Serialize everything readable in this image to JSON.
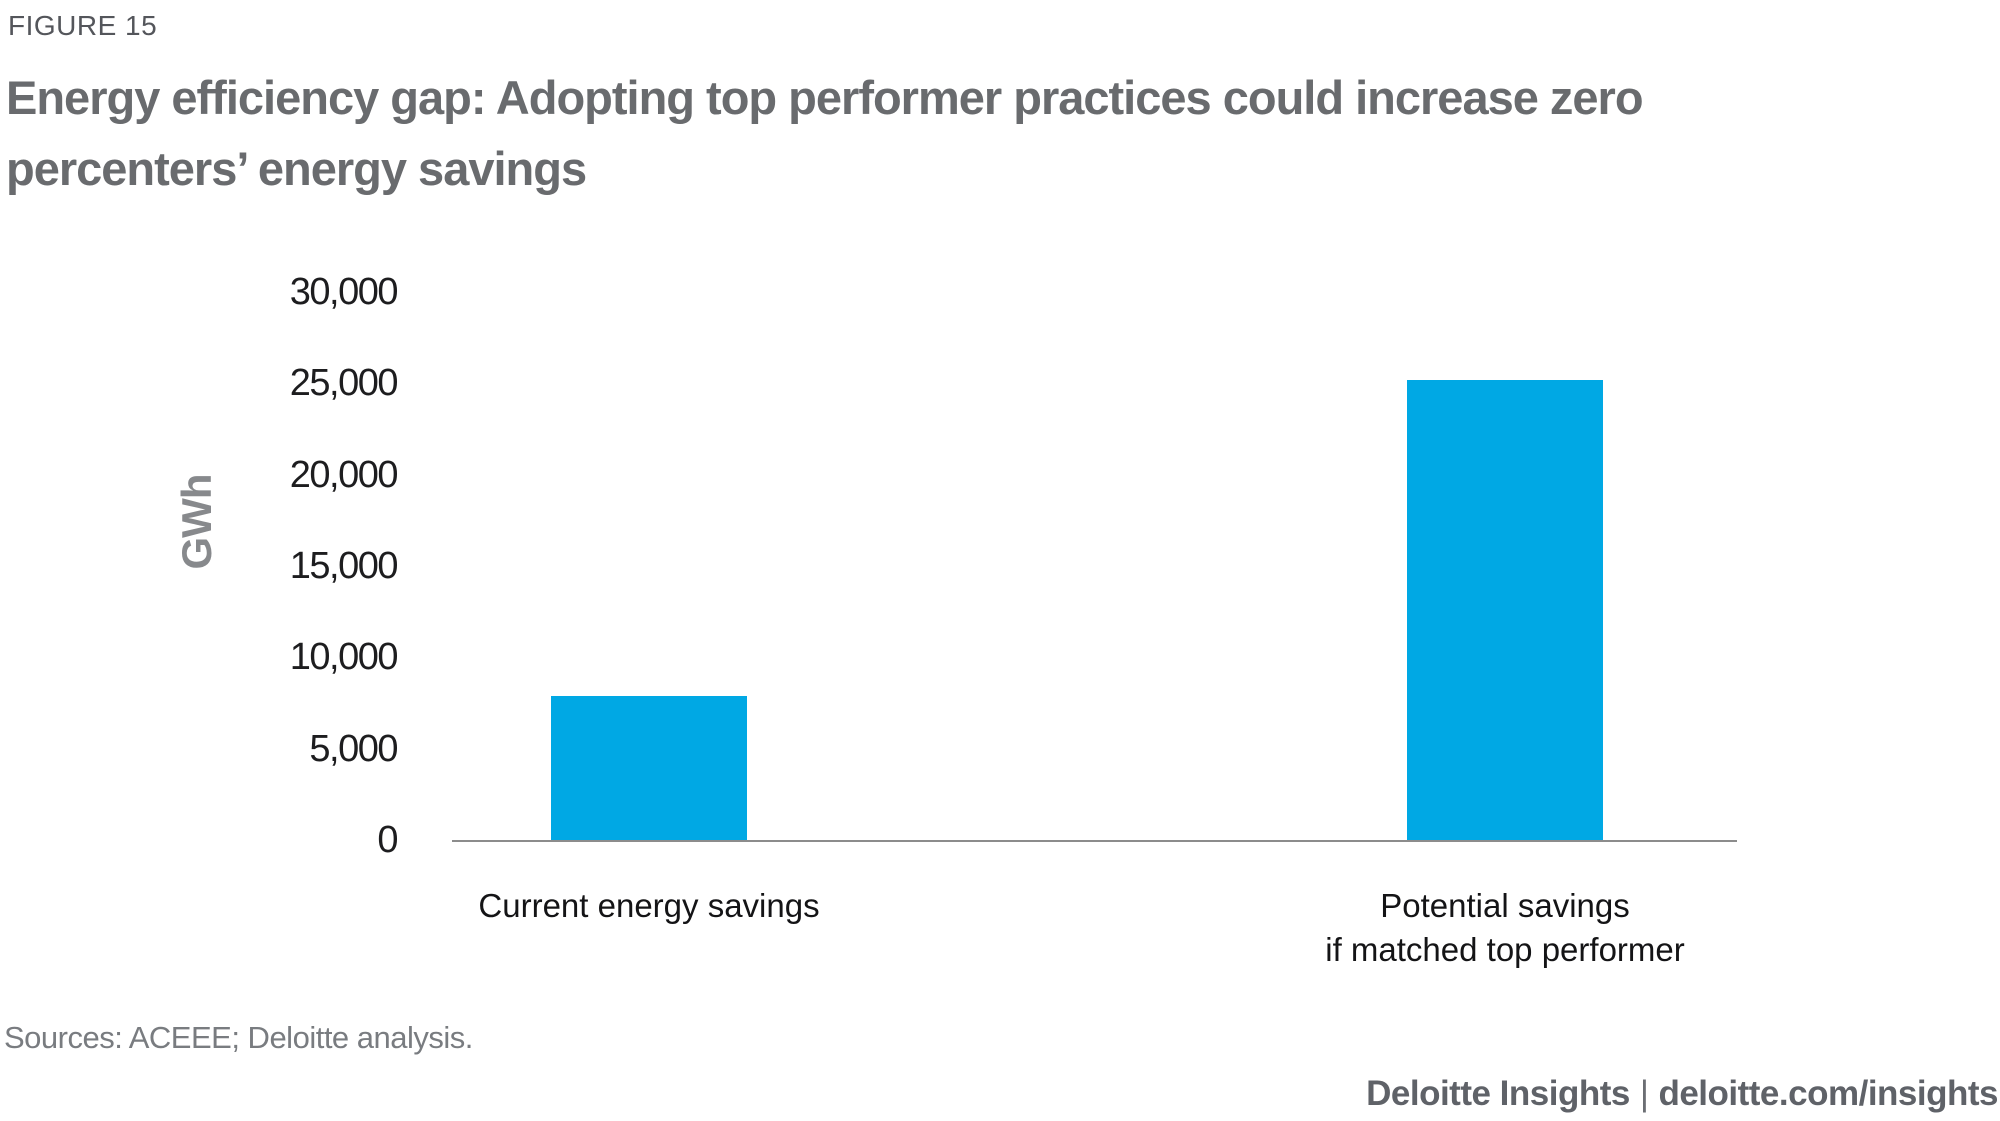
{
  "figure_label": "FIGURE 15",
  "title": "Energy efficiency gap: Adopting top performer practices could increase zero percenters’ energy savings",
  "chart_data": {
    "type": "bar",
    "title": "Energy efficiency gap: Adopting top performer practices could increase zero percenters’ energy savings",
    "categories": [
      "Current energy savings",
      "Potential savings\nif matched top performer"
    ],
    "values": [
      7900,
      25200
    ],
    "unit": "GWh",
    "xlabel": "",
    "ylabel": "GWh",
    "ylim": [
      0,
      30000
    ],
    "yticks": [
      0,
      5000,
      10000,
      15000,
      20000,
      25000,
      30000
    ],
    "ytick_labels": [
      "0",
      "5,000",
      "10,000",
      "15,000",
      "20,000",
      "25,000",
      "30,000"
    ],
    "bar_color": "#00A8E4",
    "axis_line_color": "#8C8C8C",
    "grid": false,
    "legend": "none"
  },
  "sources": "Sources: ACEEE; Deloitte analysis.",
  "footer": {
    "brand": "Deloitte Insights",
    "separator": "|",
    "link": "deloitte.com/insights"
  },
  "colors": {
    "bar": "#00A8E4",
    "title_gray": "#696B6E",
    "figure_label_gray": "#54565B",
    "axis_label_gray": "#87898C",
    "tick_text": "#1D1D1F",
    "sources_gray": "#797C80",
    "footer_gray": "#5F6268",
    "background": "#FFFFFF"
  }
}
